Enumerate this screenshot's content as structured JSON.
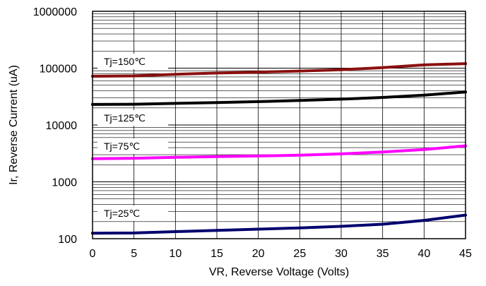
{
  "chart_data": {
    "type": "line",
    "title": "",
    "xlabel": "VR, Reverse Voltage (Volts)",
    "ylabel": "Ir, Reverse Current (uA)",
    "x_scale": "linear",
    "y_scale": "log",
    "xlim": [
      0,
      45
    ],
    "ylim": [
      100,
      1000000
    ],
    "x_ticks": [
      "0",
      "5",
      "10",
      "15",
      "20",
      "25",
      "30",
      "35",
      "40",
      "45"
    ],
    "y_ticks": [
      "100",
      "1000",
      "10000",
      "100000",
      "1000000"
    ],
    "grid": true,
    "x": [
      0,
      5,
      10,
      15,
      20,
      25,
      30,
      35,
      40,
      45
    ],
    "series": [
      {
        "name": "Tj=150℃",
        "color": "#8b1010",
        "values": [
          72000,
          73000,
          78000,
          82000,
          85000,
          89000,
          94000,
          102000,
          114000,
          120000
        ]
      },
      {
        "name": "Tj=125℃",
        "color": "#000000",
        "values": [
          23000,
          23200,
          24000,
          24800,
          25800,
          27000,
          28500,
          30500,
          33500,
          38000
        ]
      },
      {
        "name": "Tj=75℃",
        "color": "#ff00ff",
        "values": [
          2550,
          2600,
          2700,
          2780,
          2850,
          2950,
          3100,
          3350,
          3700,
          4300
        ]
      },
      {
        "name": "Tj=25℃",
        "color": "#00006e",
        "values": [
          125,
          126,
          133,
          140,
          147,
          155,
          165,
          180,
          210,
          260
        ]
      }
    ]
  }
}
